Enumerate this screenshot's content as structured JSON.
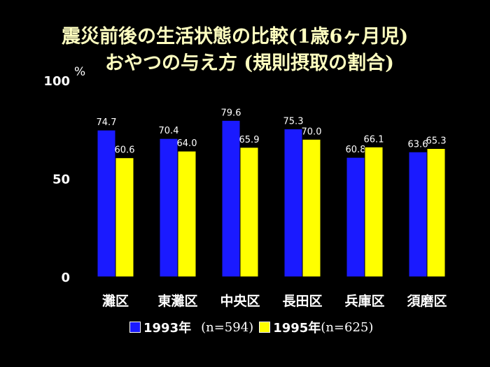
{
  "chart_data": {
    "type": "bar",
    "title": "震災前後の生活状態の比較(1歳6ヶ月児)",
    "subtitle": "おやつの与え方 (規則摂取の割合)",
    "ylabel": "%",
    "ylim": [
      0,
      100
    ],
    "yticks": [
      0,
      50,
      100
    ],
    "categories": [
      "灘区",
      "東灘区",
      "中央区",
      "長田区",
      "兵庫区",
      "須磨区"
    ],
    "series": [
      {
        "name": "1993年",
        "note": "(n=594)",
        "color": "#1a1aff",
        "values": [
          74.7,
          70.4,
          79.6,
          75.3,
          60.8,
          63.6
        ]
      },
      {
        "name": "1995年",
        "note": "(n=625)",
        "color": "#ffff00",
        "values": [
          60.6,
          64.0,
          65.9,
          70.0,
          66.1,
          65.3
        ]
      }
    ],
    "grid": false,
    "legend": "bottom"
  }
}
